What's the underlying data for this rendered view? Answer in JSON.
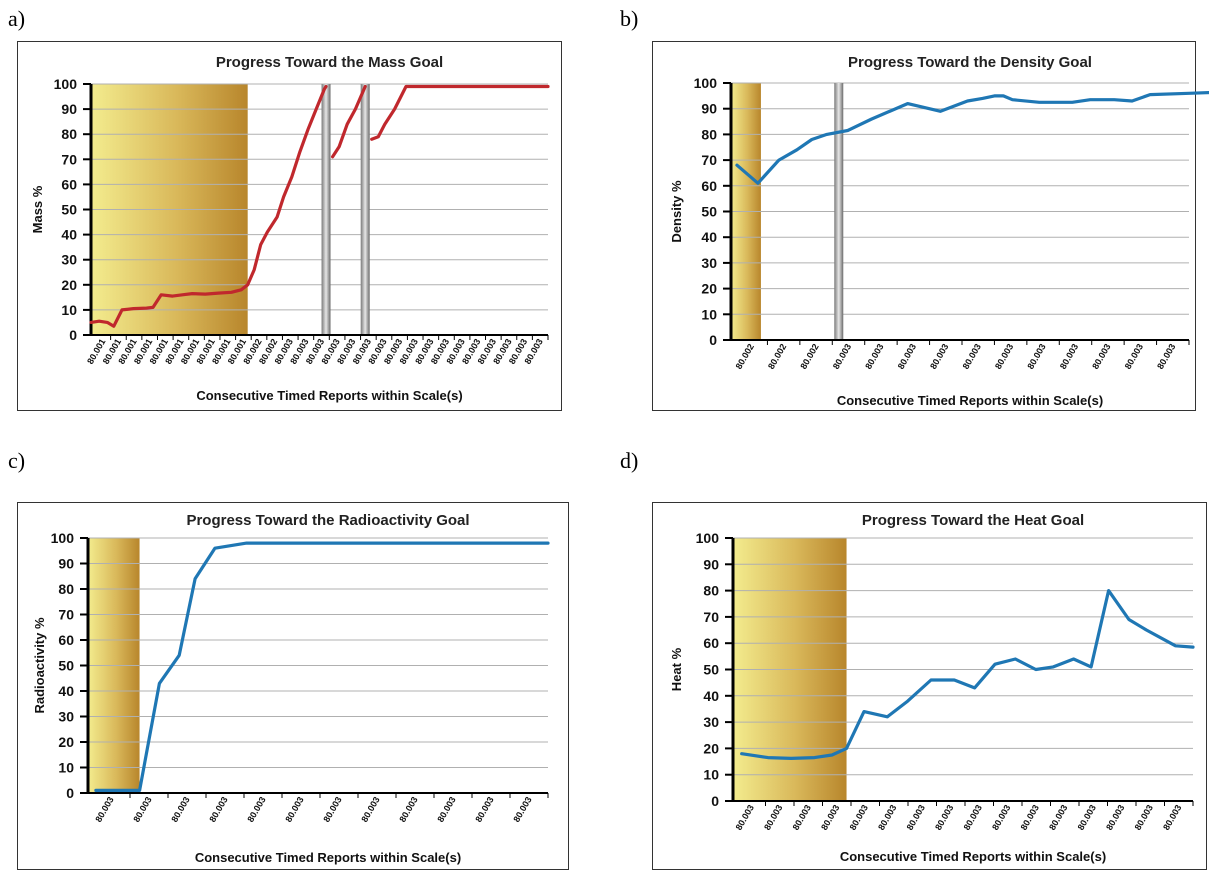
{
  "panel_labels": [
    "a)",
    "b)",
    "c)",
    "d)"
  ],
  "chart_data": [
    {
      "type": "line",
      "title": "Progress Toward the Mass Goal",
      "xlabel": "Consecutive Timed Reports within Scale(s)",
      "ylabel": "Mass %",
      "ylim": [
        0,
        100
      ],
      "yticks": [
        0,
        10,
        20,
        30,
        40,
        50,
        60,
        70,
        80,
        90,
        100
      ],
      "grid": true,
      "x_tick_labels": [
        "80.001",
        "80.001",
        "80.001",
        "80.001",
        "80.001",
        "80.001",
        "80.001",
        "80.001",
        "80.001",
        "80.001",
        "80.002",
        "80.002",
        "80.003",
        "80.003",
        "80.003",
        "80.003",
        "80.003",
        "80.003",
        "80.003",
        "80.003",
        "80.003",
        "80.003",
        "80.003",
        "80.003",
        "80.003",
        "80.003",
        "80.003",
        "80.003",
        "80.003"
      ],
      "xlim": [
        0,
        28
      ],
      "line_color": "#c0282d",
      "shaded_region": {
        "from": 0,
        "to": 9.6
      },
      "markers": [
        14.4,
        16.8
      ],
      "series": [
        {
          "segments": [
            [
              [
                0,
                5
              ],
              [
                0.5,
                5.5
              ],
              [
                1,
                5
              ],
              [
                1.4,
                3.5
              ],
              [
                1.9,
                10
              ],
              [
                2.6,
                10.5
              ],
              [
                3.4,
                10.7
              ],
              [
                3.8,
                11
              ],
              [
                4.3,
                16
              ],
              [
                5,
                15.5
              ],
              [
                5.6,
                16
              ],
              [
                6.2,
                16.5
              ],
              [
                7,
                16.3
              ],
              [
                7.8,
                16.7
              ],
              [
                8.6,
                17
              ],
              [
                9.2,
                18
              ],
              [
                9.6,
                20
              ],
              [
                10,
                26
              ],
              [
                10.4,
                36
              ],
              [
                10.8,
                41
              ],
              [
                11.4,
                47
              ],
              [
                11.8,
                55
              ],
              [
                12.3,
                63
              ],
              [
                12.8,
                73
              ],
              [
                13.3,
                82
              ],
              [
                13.8,
                90
              ],
              [
                14.3,
                98
              ],
              [
                14.4,
                99
              ]
            ],
            [
              [
                14.8,
                71
              ],
              [
                15.2,
                75
              ],
              [
                15.7,
                84
              ],
              [
                16.2,
                90
              ],
              [
                16.8,
                99
              ]
            ],
            [
              [
                17.2,
                78
              ],
              [
                17.6,
                79
              ],
              [
                18,
                84
              ],
              [
                18.6,
                90
              ],
              [
                19.3,
                99
              ],
              [
                28,
                99
              ]
            ]
          ]
        }
      ]
    },
    {
      "type": "line",
      "title": "Progress Toward the Density Goal",
      "xlabel": "Consecutive Timed Reports within Scale(s)",
      "ylabel": "Density %",
      "ylim": [
        0,
        100
      ],
      "yticks": [
        0,
        10,
        20,
        30,
        40,
        50,
        60,
        70,
        80,
        90,
        100
      ],
      "grid": true,
      "x_tick_labels": [
        "80.002",
        "80.002",
        "80.002",
        "80.003",
        "80.003",
        "80.003",
        "80.003",
        "80.003",
        "80.003",
        "80.003",
        "80.003",
        "80.003",
        "80.003",
        "80.003"
      ],
      "xlim": [
        0,
        15.3
      ],
      "line_color": "#1f77b4",
      "shaded_region": {
        "from": 0,
        "to": 1
      },
      "markers": [
        3.6
      ],
      "series": [
        {
          "segments": [
            [
              [
                0.2,
                68
              ],
              [
                0.9,
                61
              ],
              [
                1.6,
                70
              ],
              [
                2.2,
                74
              ],
              [
                2.7,
                78
              ],
              [
                3.2,
                80
              ],
              [
                3.9,
                81.5
              ],
              [
                4.7,
                86
              ],
              [
                5.9,
                92
              ],
              [
                7,
                89
              ],
              [
                7.9,
                93
              ],
              [
                8.4,
                94
              ],
              [
                8.8,
                95
              ],
              [
                9.1,
                95
              ],
              [
                9.4,
                93.5
              ],
              [
                10.3,
                92.5
              ],
              [
                10.9,
                92.5
              ],
              [
                11.4,
                92.5
              ],
              [
                12,
                93.5
              ],
              [
                12.8,
                93.5
              ],
              [
                13.4,
                93
              ],
              [
                14,
                95.5
              ],
              [
                15.3,
                96
              ],
              [
                16.5,
                96.5
              ]
            ]
          ]
        }
      ]
    },
    {
      "type": "line",
      "title": "Progress Toward the Radioactivity Goal",
      "xlabel": "Consecutive Timed Reports within Scale(s)",
      "ylabel": "Radioactivity %",
      "ylim": [
        0,
        100
      ],
      "yticks": [
        0,
        10,
        20,
        30,
        40,
        50,
        60,
        70,
        80,
        90,
        100
      ],
      "grid": true,
      "x_tick_labels": [
        "80.003",
        "80.003",
        "80.003",
        "80.003",
        "80.003",
        "80.003",
        "80.003",
        "80.003",
        "80.003",
        "80.003",
        "80.003",
        "80.003"
      ],
      "xlim": [
        0,
        11.6
      ],
      "line_color": "#1f77b4",
      "shaded_region": {
        "from": 0,
        "to": 1.3
      },
      "markers": [],
      "series": [
        {
          "segments": [
            [
              [
                0.2,
                1
              ],
              [
                1.3,
                1
              ],
              [
                1.8,
                43
              ],
              [
                2.3,
                54
              ],
              [
                2.7,
                84
              ],
              [
                3.2,
                96
              ],
              [
                4,
                98
              ],
              [
                5,
                98
              ],
              [
                11.6,
                98
              ]
            ]
          ]
        }
      ]
    },
    {
      "type": "line",
      "title": "Progress Toward the Heat Goal",
      "xlabel": "Consecutive Timed Reports within Scale(s)",
      "ylabel": "Heat %",
      "ylim": [
        0,
        100
      ],
      "yticks": [
        0,
        10,
        20,
        30,
        40,
        50,
        60,
        70,
        80,
        90,
        100
      ],
      "grid": true,
      "x_tick_labels": [
        "80.003",
        "80.003",
        "80.003",
        "80.003",
        "80.003",
        "80.003",
        "80.003",
        "80.003",
        "80.003",
        "80.003",
        "80.003",
        "80.003",
        "80.003",
        "80.003",
        "80.003",
        "80.003"
      ],
      "xlim": [
        0,
        15.8
      ],
      "line_color": "#1f77b4",
      "shaded_region": {
        "from": 0,
        "to": 3.9
      },
      "markers": [],
      "series": [
        {
          "segments": [
            [
              [
                0.3,
                18
              ],
              [
                1.2,
                16.5
              ],
              [
                2,
                16.2
              ],
              [
                2.8,
                16.5
              ],
              [
                3.4,
                17.5
              ],
              [
                3.9,
                20
              ],
              [
                4.5,
                34
              ],
              [
                5.3,
                32
              ],
              [
                6,
                38
              ],
              [
                6.8,
                46
              ],
              [
                7.6,
                46
              ],
              [
                8.3,
                43
              ],
              [
                9,
                52
              ],
              [
                9.7,
                54
              ],
              [
                10.4,
                50
              ],
              [
                11,
                51
              ],
              [
                11.7,
                54
              ],
              [
                12.3,
                51
              ],
              [
                12.9,
                80
              ],
              [
                13.6,
                69
              ],
              [
                14.2,
                65
              ],
              [
                15.2,
                59
              ],
              [
                15.8,
                58.5
              ]
            ]
          ]
        }
      ]
    }
  ]
}
